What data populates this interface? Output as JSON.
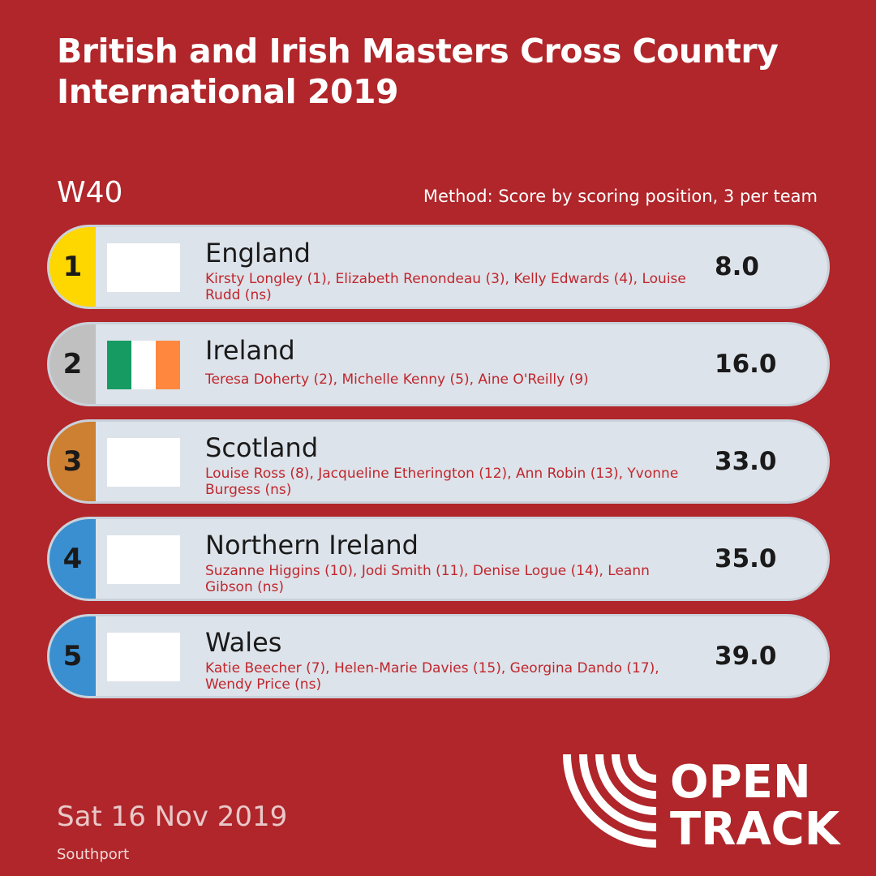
{
  "title": "British and Irish Masters Cross Country International 2019",
  "category": "W40",
  "method": "Method: Score by scoring position, 3 per team",
  "results": [
    {
      "rank": "1",
      "team": "England",
      "members": "Kirsty Longley (1), Elizabeth Renondeau (3), Kelly Edwards (4), Louise Rudd (ns)",
      "score": "8.0",
      "rank_color": "#ffd700",
      "flag": "blank"
    },
    {
      "rank": "2",
      "team": "Ireland",
      "members": "Teresa Doherty (2), Michelle Kenny (5), Aine O'Reilly (9)",
      "score": "16.0",
      "rank_color": "#c0c0c0",
      "flag": "ireland"
    },
    {
      "rank": "3",
      "team": "Scotland",
      "members": "Louise Ross (8), Jacqueline Etherington (12), Ann Robin (13), Yvonne Burgess (ns)",
      "score": "33.0",
      "rank_color": "#cd7f32",
      "flag": "blank"
    },
    {
      "rank": "4",
      "team": "Northern Ireland",
      "members": "Suzanne Higgins (10), Jodi Smith (11), Denise Logue (14), Leann Gibson (ns)",
      "score": "35.0",
      "rank_color": "#3a8fd0",
      "flag": "blank"
    },
    {
      "rank": "5",
      "team": "Wales",
      "members": "Katie Beecher (7), Helen-Marie Davies (15), Georgina Dando (17), Wendy Price (ns)",
      "score": "39.0",
      "rank_color": "#3a8fd0",
      "flag": "blank"
    }
  ],
  "flag_colors": {
    "ireland": [
      "#169b62",
      "#ffffff",
      "#ff883e"
    ]
  },
  "date": "Sat 16 Nov 2019",
  "venue": "Southport",
  "logo": {
    "line1": "OPEN",
    "line2": "TRACK",
    "icon": "opentrack-logo-icon"
  },
  "colors": {
    "background": "#b0262a",
    "row_background": "#dde3ea",
    "member_text": "#c0262d"
  }
}
